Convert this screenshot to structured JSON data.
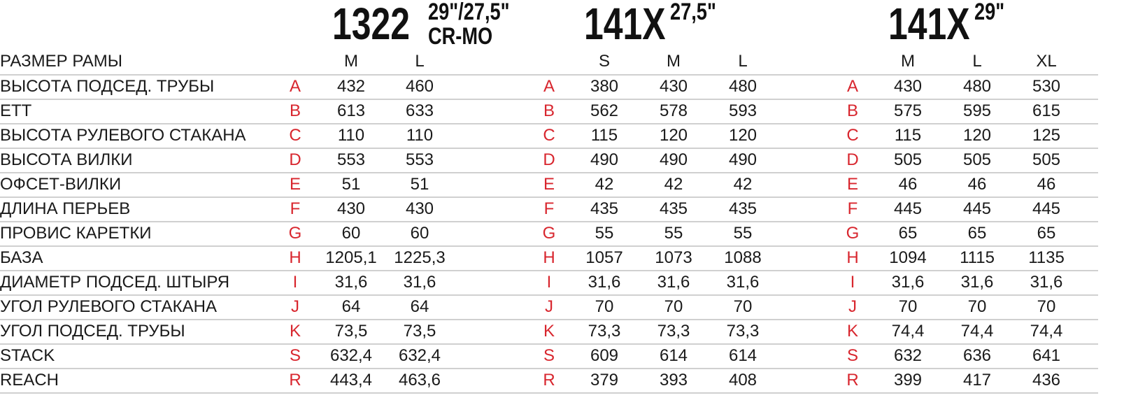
{
  "row_header": "РАЗМЕР РАМЫ",
  "groups": [
    {
      "model": "1322",
      "spec": [
        "29\"/27,5\"",
        "CR-MO"
      ],
      "sizes": [
        "M",
        "L"
      ]
    },
    {
      "model": "141X",
      "spec": [
        "27,5\""
      ],
      "sizes": [
        "S",
        "M",
        "L"
      ]
    },
    {
      "model": "141X",
      "spec": [
        "29\""
      ],
      "sizes": [
        "M",
        "L",
        "XL"
      ]
    }
  ],
  "rows": [
    {
      "label": "ВЫСОТА ПОДСЕД. ТРУБЫ",
      "letter": "A",
      "values": [
        [
          "432",
          "460"
        ],
        [
          "380",
          "430",
          "480"
        ],
        [
          "430",
          "480",
          "530"
        ]
      ]
    },
    {
      "label": "ETT",
      "letter": "B",
      "values": [
        [
          "613",
          "633"
        ],
        [
          "562",
          "578",
          "593"
        ],
        [
          "575",
          "595",
          "615"
        ]
      ]
    },
    {
      "label": "ВЫСОТА РУЛЕВОГО СТАКАНА",
      "letter": "C",
      "values": [
        [
          "110",
          "110"
        ],
        [
          "115",
          "120",
          "120"
        ],
        [
          "115",
          "120",
          "125"
        ]
      ]
    },
    {
      "label": "ВЫСОТА ВИЛКИ",
      "letter": "D",
      "values": [
        [
          "553",
          "553"
        ],
        [
          "490",
          "490",
          "490"
        ],
        [
          "505",
          "505",
          "505"
        ]
      ]
    },
    {
      "label": "ОФСЕТ-ВИЛКИ",
      "letter": "E",
      "values": [
        [
          "51",
          "51"
        ],
        [
          "42",
          "42",
          "42"
        ],
        [
          "46",
          "46",
          "46"
        ]
      ]
    },
    {
      "label": "ДЛИНА ПЕРЬЕВ",
      "letter": "F",
      "values": [
        [
          "430",
          "430"
        ],
        [
          "435",
          "435",
          "435"
        ],
        [
          "445",
          "445",
          "445"
        ]
      ]
    },
    {
      "label": "ПРОВИС КАРЕТКИ",
      "letter": "G",
      "values": [
        [
          "60",
          "60"
        ],
        [
          "55",
          "55",
          "55"
        ],
        [
          "65",
          "65",
          "65"
        ]
      ]
    },
    {
      "label": "БАЗА",
      "letter": "H",
      "values": [
        [
          "1205,1",
          "1225,3"
        ],
        [
          "1057",
          "1073",
          "1088"
        ],
        [
          "1094",
          "1115",
          "1135"
        ]
      ]
    },
    {
      "label": "ДИАМЕТР ПОДСЕД. ШТЫРЯ",
      "letter": "I",
      "values": [
        [
          "31,6",
          "31,6"
        ],
        [
          "31,6",
          "31,6",
          "31,6"
        ],
        [
          "31,6",
          "31,6",
          "31,6"
        ]
      ]
    },
    {
      "label": "УГОЛ РУЛЕВОГО СТАКАНА",
      "letter": "J",
      "values": [
        [
          "64",
          "64"
        ],
        [
          "70",
          "70",
          "70"
        ],
        [
          "70",
          "70",
          "70"
        ]
      ]
    },
    {
      "label": "УГОЛ ПОДСЕД. ТРУБЫ",
      "letter": "K",
      "values": [
        [
          "73,5",
          "73,5"
        ],
        [
          "73,3",
          "73,3",
          "73,3"
        ],
        [
          "74,4",
          "74,4",
          "74,4"
        ]
      ]
    },
    {
      "label": "STACK",
      "letter": "S",
      "values": [
        [
          "632,4",
          "632,4"
        ],
        [
          "609",
          "614",
          "614"
        ],
        [
          "632",
          "636",
          "641"
        ]
      ]
    },
    {
      "label": "REACH",
      "letter": "R",
      "values": [
        [
          "443,4",
          "463,6"
        ],
        [
          "379",
          "393",
          "408"
        ],
        [
          "399",
          "417",
          "436"
        ]
      ]
    }
  ]
}
